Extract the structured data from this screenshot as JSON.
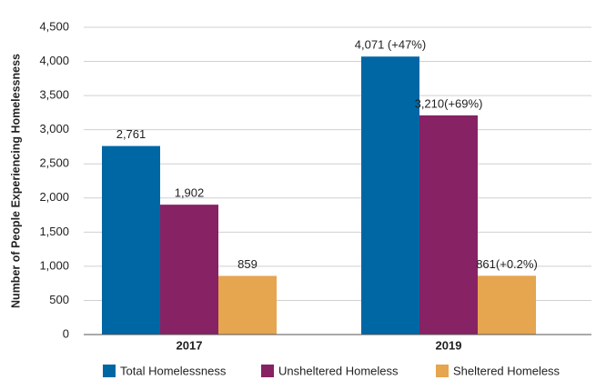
{
  "chart_data": {
    "type": "bar",
    "y_label": "Number of People Experiencing Homelessness",
    "categories": [
      "2017",
      "2019"
    ],
    "series": [
      {
        "name": "Total Homelessness",
        "color": "#0067a5",
        "values": [
          2761,
          4071
        ],
        "value_labels": [
          "2,761",
          "4,071 (+47%)"
        ]
      },
      {
        "name": "Unsheltered Homeless",
        "color": "#872264",
        "values": [
          1902,
          3210
        ],
        "value_labels": [
          "1,902",
          "3,210(+69%)"
        ]
      },
      {
        "name": "Sheltered Homeless",
        "color": "#e6a54f",
        "values": [
          859,
          861
        ],
        "value_labels": [
          "859",
          "861(+0.2%)"
        ]
      }
    ],
    "ylim": [
      0,
      4500
    ],
    "yticks": [
      0,
      500,
      {
        "value": 1000,
        "label": "1,000"
      },
      {
        "value": 1500,
        "label": "1,500"
      },
      {
        "value": 2000,
        "label": "2,000"
      },
      {
        "value": 2500,
        "label": "2,500"
      },
      {
        "value": 3000,
        "label": "3,000"
      },
      {
        "value": 3500,
        "label": "3,500"
      },
      {
        "value": 4000,
        "label": "4,000"
      },
      {
        "value": 4500,
        "label": "4,500"
      }
    ],
    "grid": true,
    "legend": "bottom"
  }
}
